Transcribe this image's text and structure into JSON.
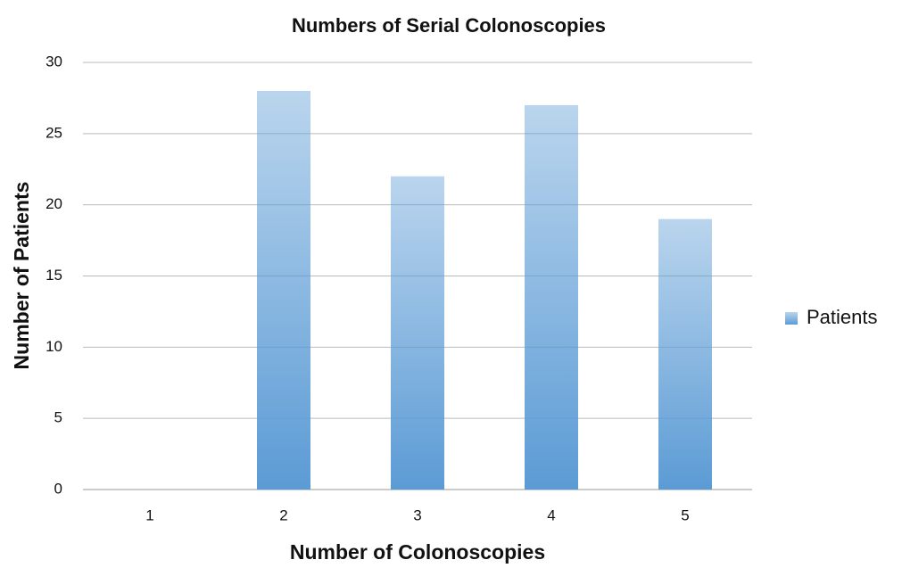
{
  "chart_data": {
    "type": "bar",
    "title": "Numbers of Serial Colonoscopies",
    "x_label": "Number of Colonoscopies",
    "y_label": "Number of Patients",
    "categories": [
      "1",
      "2",
      "3",
      "4",
      "5"
    ],
    "series": [
      {
        "name": "Patients",
        "color": "#5b9bd5",
        "values": [
          0,
          28,
          22,
          27,
          19
        ]
      }
    ],
    "ylim": [
      0,
      30
    ],
    "yticks": [
      0,
      5,
      10,
      15,
      20,
      25,
      30
    ],
    "grid": true,
    "legend": "right"
  }
}
